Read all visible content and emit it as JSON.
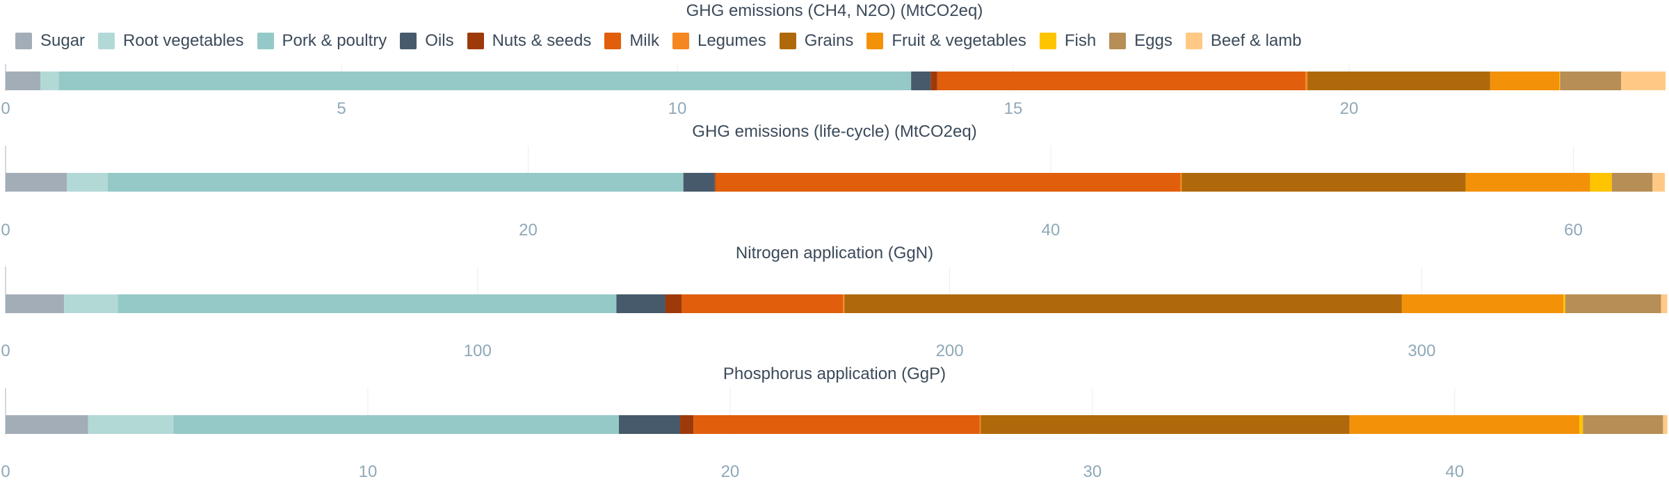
{
  "colors": {
    "Sugar": "#a3adb8",
    "Root vegetables": "#b3d9d6",
    "Pork & poultry": "#95c9c7",
    "Oils": "#475a6b",
    "Nuts & seeds": "#9e3a0a",
    "Milk": "#e05e0c",
    "Legumes": "#f6861f",
    "Grains": "#b0690a",
    "Fruit & vegetables": "#f39209",
    "Fish": "#ffc400",
    "Eggs": "#b68e56",
    "Beef & lamb": "#ffc985"
  },
  "chart_data": [
    {
      "type": "bar",
      "orientation": "horizontal",
      "stacked": true,
      "title": "GHG emissions (CH4, N2O) (MtCO2eq)",
      "legend": "top-left",
      "xlim": [
        0,
        24.7
      ],
      "ticks": [
        0,
        5,
        10,
        15,
        20
      ],
      "grid": true,
      "segments": [
        {
          "name": "Sugar",
          "value": 0.52
        },
        {
          "name": "Root vegetables",
          "value": 0.27
        },
        {
          "name": "Pork & poultry",
          "value": 12.69
        },
        {
          "name": "Oils",
          "value": 0.29
        },
        {
          "name": "Nuts & seeds",
          "value": 0.1
        },
        {
          "name": "Milk",
          "value": 5.48
        },
        {
          "name": "Legumes",
          "value": 0.03
        },
        {
          "name": "Grains",
          "value": 2.72
        },
        {
          "name": "Fruit & vegetables",
          "value": 1.03
        },
        {
          "name": "Fish",
          "value": 0.01
        },
        {
          "name": "Eggs",
          "value": 0.91
        },
        {
          "name": "Beef & lamb",
          "value": 0.66
        }
      ]
    },
    {
      "type": "bar",
      "orientation": "horizontal",
      "stacked": true,
      "title": "GHG emissions (life-cycle) (MtCO2eq)",
      "xlim": [
        0,
        63.5
      ],
      "ticks": [
        0,
        20,
        40,
        60
      ],
      "grid": true,
      "segments": [
        {
          "name": "Sugar",
          "value": 2.35
        },
        {
          "name": "Root vegetables",
          "value": 1.56
        },
        {
          "name": "Pork & poultry",
          "value": 22.03
        },
        {
          "name": "Oils",
          "value": 1.2
        },
        {
          "name": "Nuts & seeds",
          "value": 0.03
        },
        {
          "name": "Milk",
          "value": 17.78
        },
        {
          "name": "Legumes",
          "value": 0.06
        },
        {
          "name": "Grains",
          "value": 10.87
        },
        {
          "name": "Fruit & vegetables",
          "value": 4.76
        },
        {
          "name": "Fish",
          "value": 0.83
        },
        {
          "name": "Eggs",
          "value": 1.56
        },
        {
          "name": "Beef & lamb",
          "value": 0.47
        }
      ]
    },
    {
      "type": "bar",
      "orientation": "horizontal",
      "stacked": true,
      "title": "Nitrogen application (GgN)",
      "xlim": [
        0,
        351.5
      ],
      "ticks": [
        0,
        100,
        200,
        300
      ],
      "grid": true,
      "segments": [
        {
          "name": "Sugar",
          "value": 12.4
        },
        {
          "name": "Root vegetables",
          "value": 11.4
        },
        {
          "name": "Pork & poultry",
          "value": 105.6
        },
        {
          "name": "Oils",
          "value": 10.4
        },
        {
          "name": "Nuts & seeds",
          "value": 3.4
        },
        {
          "name": "Milk",
          "value": 34.2
        },
        {
          "name": "Legumes",
          "value": 0.3
        },
        {
          "name": "Grains",
          "value": 118.1
        },
        {
          "name": "Fruit & vegetables",
          "value": 34.2
        },
        {
          "name": "Fish",
          "value": 0.4
        },
        {
          "name": "Eggs",
          "value": 20.3
        },
        {
          "name": "Beef & lamb",
          "value": 1.3
        }
      ]
    },
    {
      "type": "bar",
      "orientation": "horizontal",
      "stacked": true,
      "title": "Phosphorus application (GgP)",
      "xlim": [
        0,
        45.8
      ],
      "ticks": [
        0,
        10,
        20,
        30,
        40
      ],
      "grid": true,
      "segments": [
        {
          "name": "Sugar",
          "value": 2.28
        },
        {
          "name": "Root vegetables",
          "value": 2.35
        },
        {
          "name": "Pork & poultry",
          "value": 12.3
        },
        {
          "name": "Oils",
          "value": 1.69
        },
        {
          "name": "Nuts & seeds",
          "value": 0.37
        },
        {
          "name": "Milk",
          "value": 7.9
        },
        {
          "name": "Legumes",
          "value": 0.03
        },
        {
          "name": "Grains",
          "value": 10.18
        },
        {
          "name": "Fruit & vegetables",
          "value": 6.34
        },
        {
          "name": "Fish",
          "value": 0.1
        },
        {
          "name": "Eggs",
          "value": 2.21
        },
        {
          "name": "Beef & lamb",
          "value": 0.12
        }
      ]
    }
  ]
}
